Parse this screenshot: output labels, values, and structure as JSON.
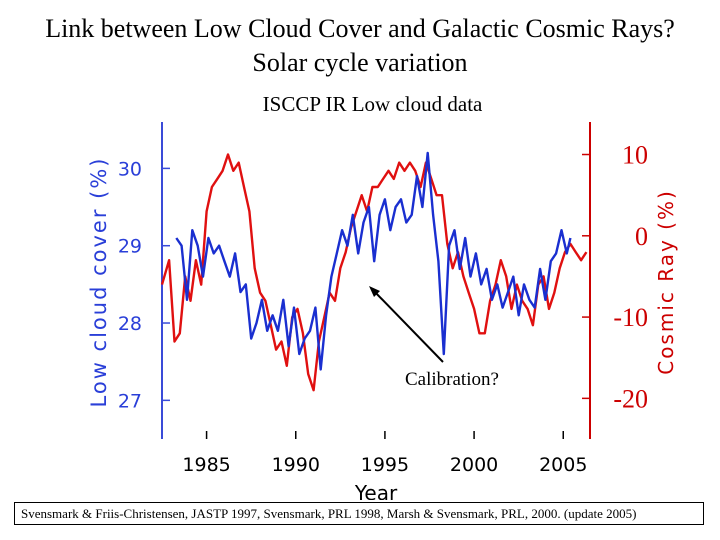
{
  "header": {
    "title_line1": "Link between Low Cloud Cover and Galactic Cosmic Rays?",
    "title_line2": "Solar cycle variation"
  },
  "chart_data": {
    "type": "line",
    "title": "ISCCP IR Low cloud data",
    "xlabel": "Year",
    "ylabel_left": "Low cloud cover (%)",
    "ylabel_right": "Cosmic Ray (%)",
    "xlim": [
      1982.5,
      2006.5
    ],
    "ylim_left": [
      26.5,
      30.6
    ],
    "ylim_right": [
      -25,
      14
    ],
    "x_ticks": [
      1985,
      1990,
      1995,
      2000,
      2005
    ],
    "x_tick_labels": [
      "1985",
      "1990",
      "1995",
      "2000",
      "2005"
    ],
    "left_ticks": [
      27,
      28,
      29,
      30
    ],
    "left_tick_labels": [
      "27",
      "28",
      "29",
      "30"
    ],
    "right_ticks": [
      10,
      0,
      -10,
      -20
    ],
    "right_tick_labels": [
      "10",
      "0",
      "-10",
      "-20"
    ],
    "annotation": "Calibration?",
    "colors": {
      "cloud": "#1a2fd0",
      "cosmic": "#e01010",
      "axis_right": "#cc0000"
    },
    "series": [
      {
        "name": "Low cloud cover",
        "axis": "left",
        "color": "#1a2fd0",
        "x": [
          1983.3,
          1983.6,
          1983.9,
          1984.2,
          1984.5,
          1984.8,
          1985.1,
          1985.4,
          1985.7,
          1986.0,
          1986.3,
          1986.6,
          1986.9,
          1987.2,
          1987.5,
          1987.8,
          1988.1,
          1988.4,
          1988.7,
          1989.0,
          1989.3,
          1989.6,
          1989.9,
          1990.2,
          1990.5,
          1990.8,
          1991.1,
          1991.4,
          1991.7,
          1992.0,
          1992.3,
          1992.6,
          1992.9,
          1993.2,
          1993.5,
          1993.8,
          1994.1,
          1994.4,
          1994.7,
          1995.0,
          1995.3,
          1995.6,
          1995.9,
          1996.2,
          1996.5,
          1996.8,
          1997.1,
          1997.4,
          1997.7,
          1998.0,
          1998.3,
          1998.6,
          1998.9,
          1999.2,
          1999.5,
          1999.8,
          2000.1,
          2000.4,
          2000.7,
          2001.0,
          2001.3,
          2001.6,
          2001.9,
          2002.2,
          2002.5,
          2002.8,
          2003.1,
          2003.4,
          2003.7,
          2004.0,
          2004.3,
          2004.6,
          2004.9,
          2005.2,
          2005.4
        ],
        "y": [
          29.1,
          29.0,
          28.3,
          29.2,
          29.0,
          28.6,
          29.1,
          28.9,
          29.0,
          28.8,
          28.6,
          28.9,
          28.4,
          28.5,
          27.8,
          28.0,
          28.3,
          27.9,
          28.1,
          27.9,
          28.3,
          27.7,
          28.2,
          27.6,
          27.8,
          27.9,
          28.2,
          27.4,
          28.1,
          28.6,
          28.9,
          29.2,
          29.0,
          29.4,
          28.9,
          29.3,
          29.5,
          28.8,
          29.4,
          29.6,
          29.2,
          29.5,
          29.6,
          29.3,
          29.4,
          29.9,
          29.5,
          30.2,
          29.4,
          28.8,
          27.6,
          29.0,
          29.2,
          28.7,
          29.1,
          28.6,
          28.9,
          28.5,
          28.7,
          28.3,
          28.5,
          28.2,
          28.4,
          28.6,
          28.1,
          28.5,
          28.3,
          28.2,
          28.7,
          28.3,
          28.8,
          28.9,
          29.2,
          28.9,
          29.1
        ]
      },
      {
        "name": "Cosmic Ray",
        "axis": "right",
        "color": "#e01010",
        "x": [
          1982.5,
          1982.9,
          1983.2,
          1983.5,
          1983.8,
          1984.1,
          1984.4,
          1984.7,
          1985.0,
          1985.3,
          1985.6,
          1985.9,
          1986.2,
          1986.5,
          1986.8,
          1987.1,
          1987.4,
          1987.7,
          1988.0,
          1988.3,
          1988.6,
          1988.9,
          1989.2,
          1989.5,
          1989.8,
          1990.1,
          1990.4,
          1990.7,
          1991.0,
          1991.3,
          1991.6,
          1991.9,
          1992.2,
          1992.5,
          1992.8,
          1993.1,
          1993.4,
          1993.7,
          1994.0,
          1994.3,
          1994.6,
          1994.9,
          1995.2,
          1995.5,
          1995.8,
          1996.1,
          1996.4,
          1996.7,
          1997.0,
          1997.3,
          1997.6,
          1997.9,
          1998.2,
          1998.5,
          1998.8,
          1999.1,
          1999.4,
          1999.7,
          2000.0,
          2000.3,
          2000.6,
          2000.9,
          2001.2,
          2001.5,
          2001.8,
          2002.1,
          2002.4,
          2002.7,
          2003.0,
          2003.3,
          2003.6,
          2003.9,
          2004.2,
          2004.5,
          2004.8,
          2005.1,
          2005.4,
          2005.7,
          2006.0,
          2006.3
        ],
        "y": [
          -6,
          -3,
          -13,
          -12,
          -5,
          -8,
          -3,
          -6,
          3,
          6,
          7,
          8,
          10,
          8,
          9,
          6,
          3,
          -4,
          -7,
          -8,
          -11,
          -14,
          -13,
          -16,
          -10,
          -9,
          -12,
          -17,
          -19,
          -13,
          -10,
          -7,
          -8,
          -4,
          -2,
          1,
          3,
          5,
          3,
          6,
          6,
          7,
          8,
          7,
          9,
          8,
          9,
          8,
          6,
          9,
          7,
          5,
          5,
          -1,
          -4,
          -2,
          -5,
          -7,
          -9,
          -12,
          -12,
          -8,
          -6,
          -3,
          -5,
          -9,
          -6,
          -8,
          -9,
          -11,
          -6,
          -5,
          -9,
          -7,
          -4,
          -2,
          -1,
          -2,
          -3,
          -2
        ]
      }
    ]
  },
  "reference": "Svensmark & Friis-Christensen, JASTP 1997, Svensmark, PRL  1998, Marsh & Svensmark, PRL, 2000. (update 2005)"
}
